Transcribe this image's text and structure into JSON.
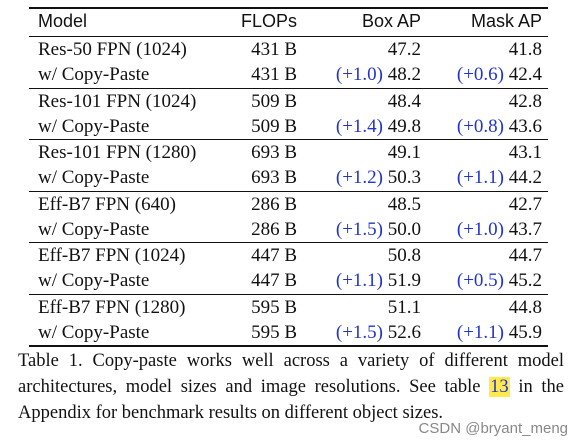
{
  "table": {
    "headers": [
      "Model",
      "FLOPs",
      "Box AP",
      "Mask AP"
    ],
    "groups": [
      {
        "rows": [
          {
            "model": "Res-50 FPN (1024)",
            "flops": "431 B",
            "box_delta": "",
            "box": "47.2",
            "mask_delta": "",
            "mask": "41.8"
          },
          {
            "model": "w/ Copy-Paste",
            "flops": "431 B",
            "box_delta": "(+1.0)",
            "box": "48.2",
            "mask_delta": "(+0.6)",
            "mask": "42.4"
          }
        ]
      },
      {
        "rows": [
          {
            "model": "Res-101 FPN (1024)",
            "flops": "509 B",
            "box_delta": "",
            "box": "48.4",
            "mask_delta": "",
            "mask": "42.8"
          },
          {
            "model": "w/ Copy-Paste",
            "flops": "509 B",
            "box_delta": "(+1.4)",
            "box": "49.8",
            "mask_delta": "(+0.8)",
            "mask": "43.6"
          }
        ]
      },
      {
        "rows": [
          {
            "model": "Res-101 FPN (1280)",
            "flops": "693 B",
            "box_delta": "",
            "box": "49.1",
            "mask_delta": "",
            "mask": "43.1"
          },
          {
            "model": "w/ Copy-Paste",
            "flops": "693 B",
            "box_delta": "(+1.2)",
            "box": "50.3",
            "mask_delta": "(+1.1)",
            "mask": "44.2"
          }
        ]
      },
      {
        "rows": [
          {
            "model": "Eff-B7 FPN (640)",
            "flops": "286 B",
            "box_delta": "",
            "box": "48.5",
            "mask_delta": "",
            "mask": "42.7"
          },
          {
            "model": "w/ Copy-Paste",
            "flops": "286 B",
            "box_delta": "(+1.5)",
            "box": "50.0",
            "mask_delta": "(+1.0)",
            "mask": "43.7"
          }
        ]
      },
      {
        "rows": [
          {
            "model": "Eff-B7 FPN (1024)",
            "flops": "447 B",
            "box_delta": "",
            "box": "50.8",
            "mask_delta": "",
            "mask": "44.7"
          },
          {
            "model": "w/ Copy-Paste",
            "flops": "447 B",
            "box_delta": "(+1.1)",
            "box": "51.9",
            "mask_delta": "(+0.5)",
            "mask": "45.2"
          }
        ]
      },
      {
        "rows": [
          {
            "model": "Eff-B7 FPN (1280)",
            "flops": "595 B",
            "box_delta": "",
            "box": "51.1",
            "mask_delta": "",
            "mask": "44.8"
          },
          {
            "model": "w/ Copy-Paste",
            "flops": "595 B",
            "box_delta": "(+1.5)",
            "box": "52.6",
            "mask_delta": "(+1.1)",
            "mask": "45.9"
          }
        ]
      }
    ]
  },
  "caption": {
    "before": "Table 1. Copy-paste works well across a variety of different model architectures, model sizes and image resolutions. See ",
    "ref_text": "table ",
    "ref_num": "13",
    "after": " in the Appendix for benchmark results on different object sizes."
  },
  "watermark": "CSDN @bryant_meng",
  "colors": {
    "delta": "#2233cc",
    "highlight": "#ffe94d"
  }
}
